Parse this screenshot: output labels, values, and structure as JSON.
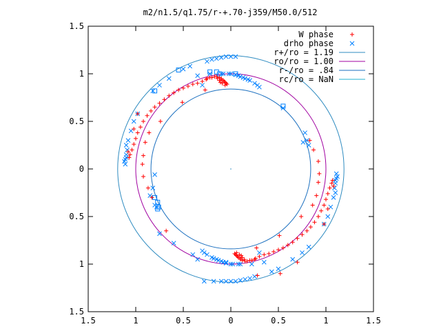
{
  "chart_data": {
    "type": "scatter",
    "title": "m2/n1.5/q1.75/r-+.70-j359/M50.0/512",
    "xlim": [
      -1.5,
      1.5
    ],
    "ylim": [
      -1.5,
      1.5
    ],
    "x_ticks": [
      {
        "value": -1.5,
        "label": "1.5"
      },
      {
        "value": -1.0,
        "label": "1"
      },
      {
        "value": -0.5,
        "label": "0.5"
      },
      {
        "value": 0.0,
        "label": "0"
      },
      {
        "value": 0.5,
        "label": "0.5"
      },
      {
        "value": 1.0,
        "label": "1"
      },
      {
        "value": 1.5,
        "label": "1.5"
      }
    ],
    "y_ticks": [
      {
        "value": 1.5,
        "label": "1.5"
      },
      {
        "value": 1.0,
        "label": "1"
      },
      {
        "value": 0.5,
        "label": "0.5"
      },
      {
        "value": 0.0,
        "label": "0"
      },
      {
        "value": -0.5,
        "label": "0.5"
      },
      {
        "value": -1.0,
        "label": "1"
      },
      {
        "value": -1.5,
        "label": "1.5"
      }
    ],
    "grid": false,
    "legend_position": "top-right",
    "legend": [
      {
        "label": "W phase",
        "symbol": "plus",
        "color": "#ff0000"
      },
      {
        "label": "drho phase",
        "symbol": "cross",
        "color": "#0080ff"
      },
      {
        "label": "r+/ro = 1.19",
        "symbol": "line",
        "color": "#2e8bc0"
      },
      {
        "label": "ro/ro = 1.00",
        "symbol": "line",
        "color": "#a000a0"
      },
      {
        "label": "r-/ro = .84",
        "symbol": "line",
        "color": "#1a6fbf"
      },
      {
        "label": "rc/ro = NaN",
        "symbol": "line",
        "color": "#20b0d0"
      }
    ],
    "circles": [
      {
        "name": "r+/ro",
        "radius": 1.19,
        "color": "#2e8bc0"
      },
      {
        "name": "ro/ro",
        "radius": 1.0,
        "color": "#a000a0"
      },
      {
        "name": "r-/ro",
        "radius": 0.84,
        "color": "#1a6fbf"
      }
    ],
    "w_phase": {
      "color": "#ff0000",
      "points": [
        [
          -0.26,
          0.94
        ],
        [
          -0.3,
          0.92
        ],
        [
          -0.35,
          0.9
        ],
        [
          -0.4,
          0.89
        ],
        [
          -0.45,
          0.87
        ],
        [
          -0.5,
          0.85
        ],
        [
          -0.55,
          0.83
        ],
        [
          -0.6,
          0.8
        ],
        [
          -0.65,
          0.77
        ],
        [
          -0.7,
          0.73
        ],
        [
          -0.75,
          0.69
        ],
        [
          -0.8,
          0.65
        ],
        [
          -0.84,
          0.61
        ],
        [
          -0.88,
          0.56
        ],
        [
          -0.92,
          0.5
        ],
        [
          -0.95,
          0.44
        ],
        [
          -0.98,
          0.38
        ],
        [
          -1.0,
          0.32
        ],
        [
          -1.02,
          0.26
        ],
        [
          -1.04,
          0.2
        ],
        [
          -1.06,
          0.15
        ],
        [
          -1.07,
          0.12
        ],
        [
          -0.25,
          0.95
        ],
        [
          -0.22,
          0.96
        ],
        [
          -0.2,
          0.96
        ],
        [
          -0.17,
          0.97
        ],
        [
          -0.15,
          0.97
        ],
        [
          -0.12,
          0.96
        ],
        [
          -0.1,
          0.95
        ],
        [
          -0.08,
          0.93
        ],
        [
          -0.06,
          0.91
        ],
        [
          -0.05,
          0.9
        ],
        [
          -0.04,
          0.89
        ],
        [
          -0.06,
          0.88
        ],
        [
          -0.1,
          0.94
        ],
        [
          -0.12,
          0.93
        ],
        [
          -0.14,
          0.95
        ],
        [
          -0.07,
          0.92
        ],
        [
          -0.09,
          0.9
        ],
        [
          -0.11,
          0.91
        ],
        [
          -0.27,
          0.83
        ],
        [
          -0.51,
          0.7
        ],
        [
          -0.74,
          0.5
        ],
        [
          -0.86,
          0.38
        ],
        [
          -0.9,
          0.28
        ],
        [
          -0.92,
          0.14
        ],
        [
          -0.93,
          0.05
        ],
        [
          -0.92,
          -0.08
        ],
        [
          -0.87,
          -0.2
        ],
        [
          -0.83,
          -0.3
        ],
        [
          -0.68,
          -0.65
        ],
        [
          -0.98,
          0.58
        ],
        [
          -1.02,
          0.42
        ],
        [
          -1.08,
          0.18
        ],
        [
          0.26,
          -0.94
        ],
        [
          0.3,
          -0.92
        ],
        [
          0.35,
          -0.9
        ],
        [
          0.4,
          -0.89
        ],
        [
          0.45,
          -0.87
        ],
        [
          0.5,
          -0.85
        ],
        [
          0.55,
          -0.83
        ],
        [
          0.6,
          -0.8
        ],
        [
          0.65,
          -0.77
        ],
        [
          0.7,
          -0.73
        ],
        [
          0.75,
          -0.69
        ],
        [
          0.8,
          -0.65
        ],
        [
          0.84,
          -0.61
        ],
        [
          0.88,
          -0.56
        ],
        [
          0.92,
          -0.5
        ],
        [
          0.95,
          -0.44
        ],
        [
          0.98,
          -0.38
        ],
        [
          1.0,
          -0.32
        ],
        [
          1.02,
          -0.26
        ],
        [
          1.04,
          -0.2
        ],
        [
          1.06,
          -0.15
        ],
        [
          1.07,
          -0.12
        ],
        [
          0.25,
          -0.95
        ],
        [
          0.22,
          -0.96
        ],
        [
          0.2,
          -0.96
        ],
        [
          0.17,
          -0.97
        ],
        [
          0.15,
          -0.97
        ],
        [
          0.12,
          -0.96
        ],
        [
          0.1,
          -0.95
        ],
        [
          0.08,
          -0.93
        ],
        [
          0.06,
          -0.91
        ],
        [
          0.05,
          -0.9
        ],
        [
          0.04,
          -0.89
        ],
        [
          0.06,
          -0.88
        ],
        [
          0.1,
          -0.94
        ],
        [
          0.12,
          -0.93
        ],
        [
          0.14,
          -0.95
        ],
        [
          0.07,
          -0.92
        ],
        [
          0.09,
          -0.9
        ],
        [
          0.11,
          -0.91
        ],
        [
          0.27,
          -0.83
        ],
        [
          0.51,
          -0.7
        ],
        [
          0.74,
          -0.5
        ],
        [
          0.86,
          -0.38
        ],
        [
          0.9,
          -0.28
        ],
        [
          0.92,
          -0.14
        ],
        [
          0.93,
          -0.05
        ],
        [
          0.92,
          0.08
        ],
        [
          0.87,
          0.2
        ],
        [
          0.83,
          0.3
        ],
        [
          0.98,
          -0.58
        ],
        [
          1.02,
          -0.42
        ],
        [
          1.08,
          -0.18
        ],
        [
          0.28,
          -1.12
        ],
        [
          0.52,
          -1.1
        ],
        [
          0.7,
          -0.98
        ]
      ]
    },
    "drho_phase": {
      "color": "#0080ff",
      "points": [
        [
          -0.15,
          1.16
        ],
        [
          -0.1,
          1.17
        ],
        [
          -0.05,
          1.18
        ],
        [
          0.0,
          1.18
        ],
        [
          0.05,
          1.18
        ],
        [
          -0.2,
          1.15
        ],
        [
          -0.25,
          1.13
        ],
        [
          0.0,
          1.0
        ],
        [
          0.05,
          0.99
        ],
        [
          0.1,
          0.97
        ],
        [
          0.15,
          0.95
        ],
        [
          0.2,
          0.93
        ],
        [
          0.25,
          0.9
        ],
        [
          0.28,
          0.88
        ],
        [
          0.3,
          0.86
        ],
        [
          -0.02,
          1.0
        ],
        [
          -0.08,
          1.0
        ],
        [
          -0.1,
          1.0
        ],
        [
          0.08,
          0.98
        ],
        [
          0.13,
          0.96
        ],
        [
          0.18,
          0.94
        ],
        [
          -1.1,
          0.12
        ],
        [
          -1.11,
          0.1
        ],
        [
          -1.12,
          0.08
        ],
        [
          -1.11,
          0.05
        ],
        [
          -1.1,
          0.15
        ],
        [
          -1.09,
          0.2
        ],
        [
          -1.1,
          0.25
        ],
        [
          -1.08,
          0.3
        ],
        [
          -1.05,
          0.4
        ],
        [
          -1.02,
          0.5
        ],
        [
          -0.98,
          0.58
        ],
        [
          -0.82,
          0.82
        ],
        [
          -0.75,
          0.88
        ],
        [
          -0.65,
          0.95
        ],
        [
          -0.5,
          1.05
        ],
        [
          -0.43,
          1.08
        ],
        [
          -0.35,
          0.98
        ],
        [
          -0.3,
          0.88
        ],
        [
          -0.22,
          1.0
        ],
        [
          -0.8,
          -0.38
        ],
        [
          -0.78,
          -0.4
        ],
        [
          -0.85,
          -0.28
        ],
        [
          -0.82,
          -0.2
        ],
        [
          -0.8,
          -0.06
        ],
        [
          0.55,
          0.64
        ],
        [
          0.78,
          0.38
        ],
        [
          0.8,
          0.3
        ],
        [
          0.76,
          0.28
        ],
        [
          0.82,
          0.25
        ],
        [
          0.15,
          -1.16
        ],
        [
          0.1,
          -1.17
        ],
        [
          0.05,
          -1.18
        ],
        [
          0.0,
          -1.18
        ],
        [
          -0.05,
          -1.18
        ],
        [
          0.2,
          -1.15
        ],
        [
          0.25,
          -1.13
        ],
        [
          0.0,
          -1.0
        ],
        [
          -0.05,
          -0.99
        ],
        [
          -0.1,
          -0.97
        ],
        [
          -0.15,
          -0.95
        ],
        [
          -0.2,
          -0.93
        ],
        [
          -0.25,
          -0.9
        ],
        [
          -0.28,
          -0.88
        ],
        [
          -0.3,
          -0.86
        ],
        [
          0.02,
          -1.0
        ],
        [
          0.08,
          -1.0
        ],
        [
          0.1,
          -1.0
        ],
        [
          -0.08,
          -0.98
        ],
        [
          -0.13,
          -0.96
        ],
        [
          -0.18,
          -0.94
        ],
        [
          1.1,
          -0.12
        ],
        [
          1.11,
          -0.1
        ],
        [
          1.12,
          -0.08
        ],
        [
          1.11,
          -0.05
        ],
        [
          1.1,
          -0.15
        ],
        [
          1.09,
          -0.2
        ],
        [
          1.1,
          -0.25
        ],
        [
          1.08,
          -0.3
        ],
        [
          1.05,
          -0.4
        ],
        [
          1.02,
          -0.5
        ],
        [
          0.98,
          -0.58
        ],
        [
          0.82,
          -0.82
        ],
        [
          0.75,
          -0.88
        ],
        [
          0.65,
          -0.95
        ],
        [
          0.5,
          -1.05
        ],
        [
          0.43,
          -1.08
        ],
        [
          0.35,
          -0.98
        ],
        [
          0.3,
          -0.88
        ],
        [
          0.22,
          -1.0
        ],
        [
          -0.75,
          -0.68
        ],
        [
          -0.6,
          -0.78
        ],
        [
          -0.4,
          -0.9
        ],
        [
          -0.35,
          -0.95
        ],
        [
          -0.1,
          -1.18
        ],
        [
          -0.18,
          -1.18
        ],
        [
          -0.28,
          -1.18
        ],
        [
          -0.05,
          -0.98
        ]
      ]
    },
    "drho_squares": {
      "color": "#0080ff",
      "points": [
        [
          -0.55,
          1.04
        ],
        [
          -0.8,
          0.82
        ],
        [
          -0.22,
          1.02
        ],
        [
          -0.15,
          1.02
        ],
        [
          0.55,
          0.66
        ],
        [
          -0.76,
          -0.4
        ],
        [
          -0.77,
          -0.35
        ],
        [
          -0.77,
          -0.42
        ],
        [
          -0.8,
          -0.3
        ],
        [
          -0.12,
          1.0
        ],
        [
          0.05,
          1.0
        ]
      ]
    },
    "origin_marker": {
      "x": 0,
      "y": 0
    }
  }
}
